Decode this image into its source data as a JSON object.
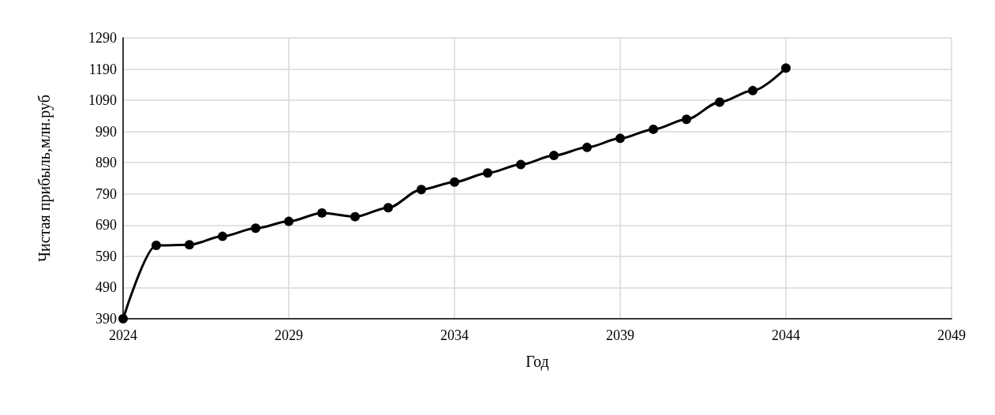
{
  "chart_data": {
    "type": "line",
    "xlabel": "Год",
    "ylabel": "Чистая прибыль,млн.руб",
    "x": [
      2024,
      2025,
      2026,
      2027,
      2028,
      2029,
      2030,
      2031,
      2032,
      2033,
      2034,
      2035,
      2036,
      2037,
      2038,
      2039,
      2040,
      2041,
      2042,
      2043,
      2044
    ],
    "series": [
      {
        "color": "#000000",
        "values": [
          390,
          625,
          627,
          654,
          680,
          702,
          729,
          717,
          746,
          804,
          828,
          857,
          884,
          913,
          939,
          968,
          997,
          1029,
          1084,
          1121,
          1193
        ]
      }
    ],
    "xlim": [
      2024,
      2049
    ],
    "xticks": [
      2024,
      2029,
      2034,
      2039,
      2044,
      2049
    ],
    "ylim": [
      390,
      1290
    ],
    "yticks": [
      390,
      490,
      590,
      690,
      790,
      890,
      990,
      1090,
      1190,
      1290
    ],
    "grid": true,
    "marker": "circle",
    "line_style": "solid"
  }
}
